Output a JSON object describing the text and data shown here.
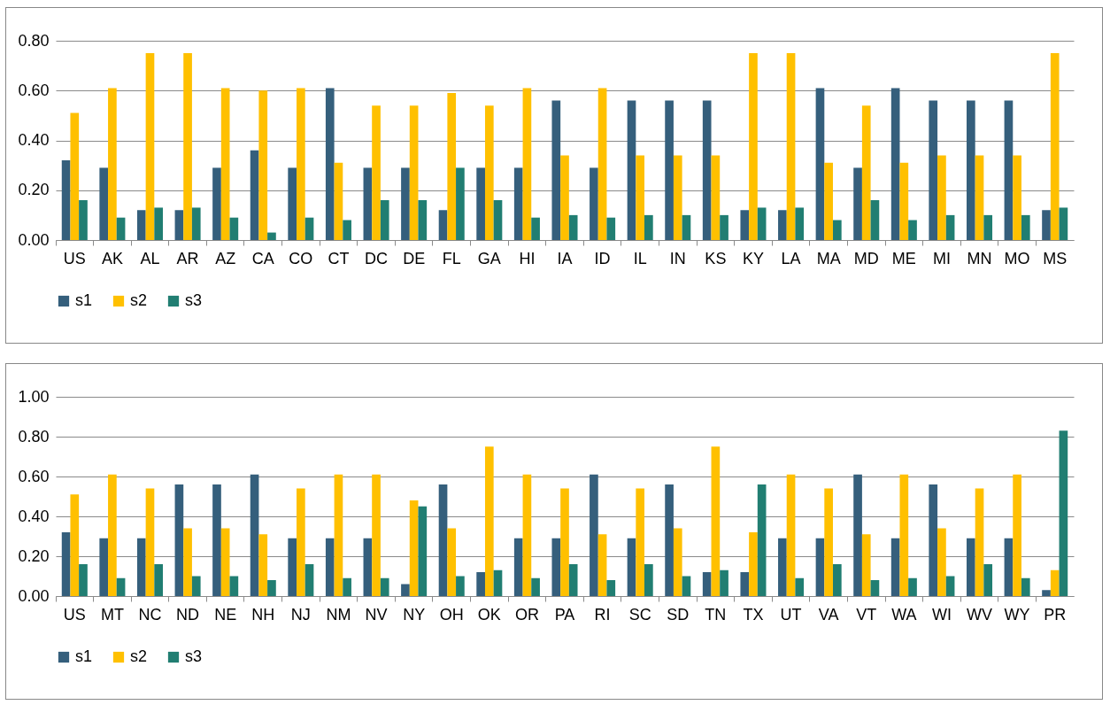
{
  "chart_data": [
    {
      "type": "bar",
      "categories": [
        "US",
        "AK",
        "AL",
        "AR",
        "AZ",
        "CA",
        "CO",
        "CT",
        "DC",
        "DE",
        "FL",
        "GA",
        "HI",
        "IA",
        "ID",
        "IL",
        "IN",
        "KS",
        "KY",
        "LA",
        "MA",
        "MD",
        "ME",
        "MI",
        "MN",
        "MO",
        "MS"
      ],
      "series": [
        {
          "name": "s1",
          "color": "#355f7c",
          "values": [
            0.32,
            0.29,
            0.12,
            0.12,
            0.29,
            0.36,
            0.29,
            0.61,
            0.29,
            0.29,
            0.12,
            0.29,
            0.29,
            0.56,
            0.29,
            0.56,
            0.56,
            0.56,
            0.12,
            0.12,
            0.61,
            0.29,
            0.61,
            0.56,
            0.56,
            0.56,
            0.12
          ]
        },
        {
          "name": "s2",
          "color": "#ffc000",
          "values": [
            0.51,
            0.61,
            0.75,
            0.75,
            0.61,
            0.6,
            0.61,
            0.31,
            0.54,
            0.54,
            0.59,
            0.54,
            0.61,
            0.34,
            0.61,
            0.34,
            0.34,
            0.34,
            0.75,
            0.75,
            0.31,
            0.54,
            0.31,
            0.34,
            0.34,
            0.34,
            0.75
          ]
        },
        {
          "name": "s3",
          "color": "#217e72",
          "values": [
            0.16,
            0.09,
            0.13,
            0.13,
            0.09,
            0.03,
            0.09,
            0.08,
            0.16,
            0.16,
            0.29,
            0.16,
            0.09,
            0.1,
            0.09,
            0.1,
            0.1,
            0.1,
            0.13,
            0.13,
            0.08,
            0.16,
            0.08,
            0.1,
            0.1,
            0.1,
            0.13
          ]
        }
      ],
      "ylim": [
        0,
        0.8
      ],
      "yticks": [
        {
          "value": 0,
          "label": "0.00"
        },
        {
          "value": 0.2,
          "label": "0.20"
        },
        {
          "value": 0.4,
          "label": "0.40"
        },
        {
          "value": 0.6,
          "label": "0.60"
        },
        {
          "value": 0.8,
          "label": "0.80"
        }
      ],
      "grid": "y",
      "legend": "bottom"
    },
    {
      "type": "bar",
      "categories": [
        "US",
        "MT",
        "NC",
        "ND",
        "NE",
        "NH",
        "NJ",
        "NM",
        "NV",
        "NY",
        "OH",
        "OK",
        "OR",
        "PA",
        "RI",
        "SC",
        "SD",
        "TN",
        "TX",
        "UT",
        "VA",
        "VT",
        "WA",
        "WI",
        "WV",
        "WY",
        "PR"
      ],
      "series": [
        {
          "name": "s1",
          "color": "#355f7c",
          "values": [
            0.32,
            0.29,
            0.29,
            0.56,
            0.56,
            0.61,
            0.29,
            0.29,
            0.29,
            0.06,
            0.56,
            0.12,
            0.29,
            0.29,
            0.61,
            0.29,
            0.56,
            0.12,
            0.12,
            0.29,
            0.29,
            0.61,
            0.29,
            0.56,
            0.29,
            0.29,
            0.03
          ]
        },
        {
          "name": "s2",
          "color": "#ffc000",
          "values": [
            0.51,
            0.61,
            0.54,
            0.34,
            0.34,
            0.31,
            0.54,
            0.61,
            0.61,
            0.48,
            0.34,
            0.75,
            0.61,
            0.54,
            0.31,
            0.54,
            0.34,
            0.75,
            0.32,
            0.61,
            0.54,
            0.31,
            0.61,
            0.34,
            0.54,
            0.61,
            0.13
          ]
        },
        {
          "name": "s3",
          "color": "#217e72",
          "values": [
            0.16,
            0.09,
            0.16,
            0.1,
            0.1,
            0.08,
            0.16,
            0.09,
            0.09,
            0.45,
            0.1,
            0.13,
            0.09,
            0.16,
            0.08,
            0.16,
            0.1,
            0.13,
            0.56,
            0.09,
            0.16,
            0.08,
            0.09,
            0.1,
            0.16,
            0.09,
            0.83
          ]
        }
      ],
      "ylim": [
        0,
        1
      ],
      "yticks": [
        {
          "value": 0,
          "label": "0.00"
        },
        {
          "value": 0.2,
          "label": "0.20"
        },
        {
          "value": 0.4,
          "label": "0.40"
        },
        {
          "value": 0.6,
          "label": "0.60"
        },
        {
          "value": 0.8,
          "label": "0.80"
        },
        {
          "value": 1,
          "label": "1.00"
        }
      ],
      "grid": "y",
      "legend": "bottom"
    }
  ]
}
